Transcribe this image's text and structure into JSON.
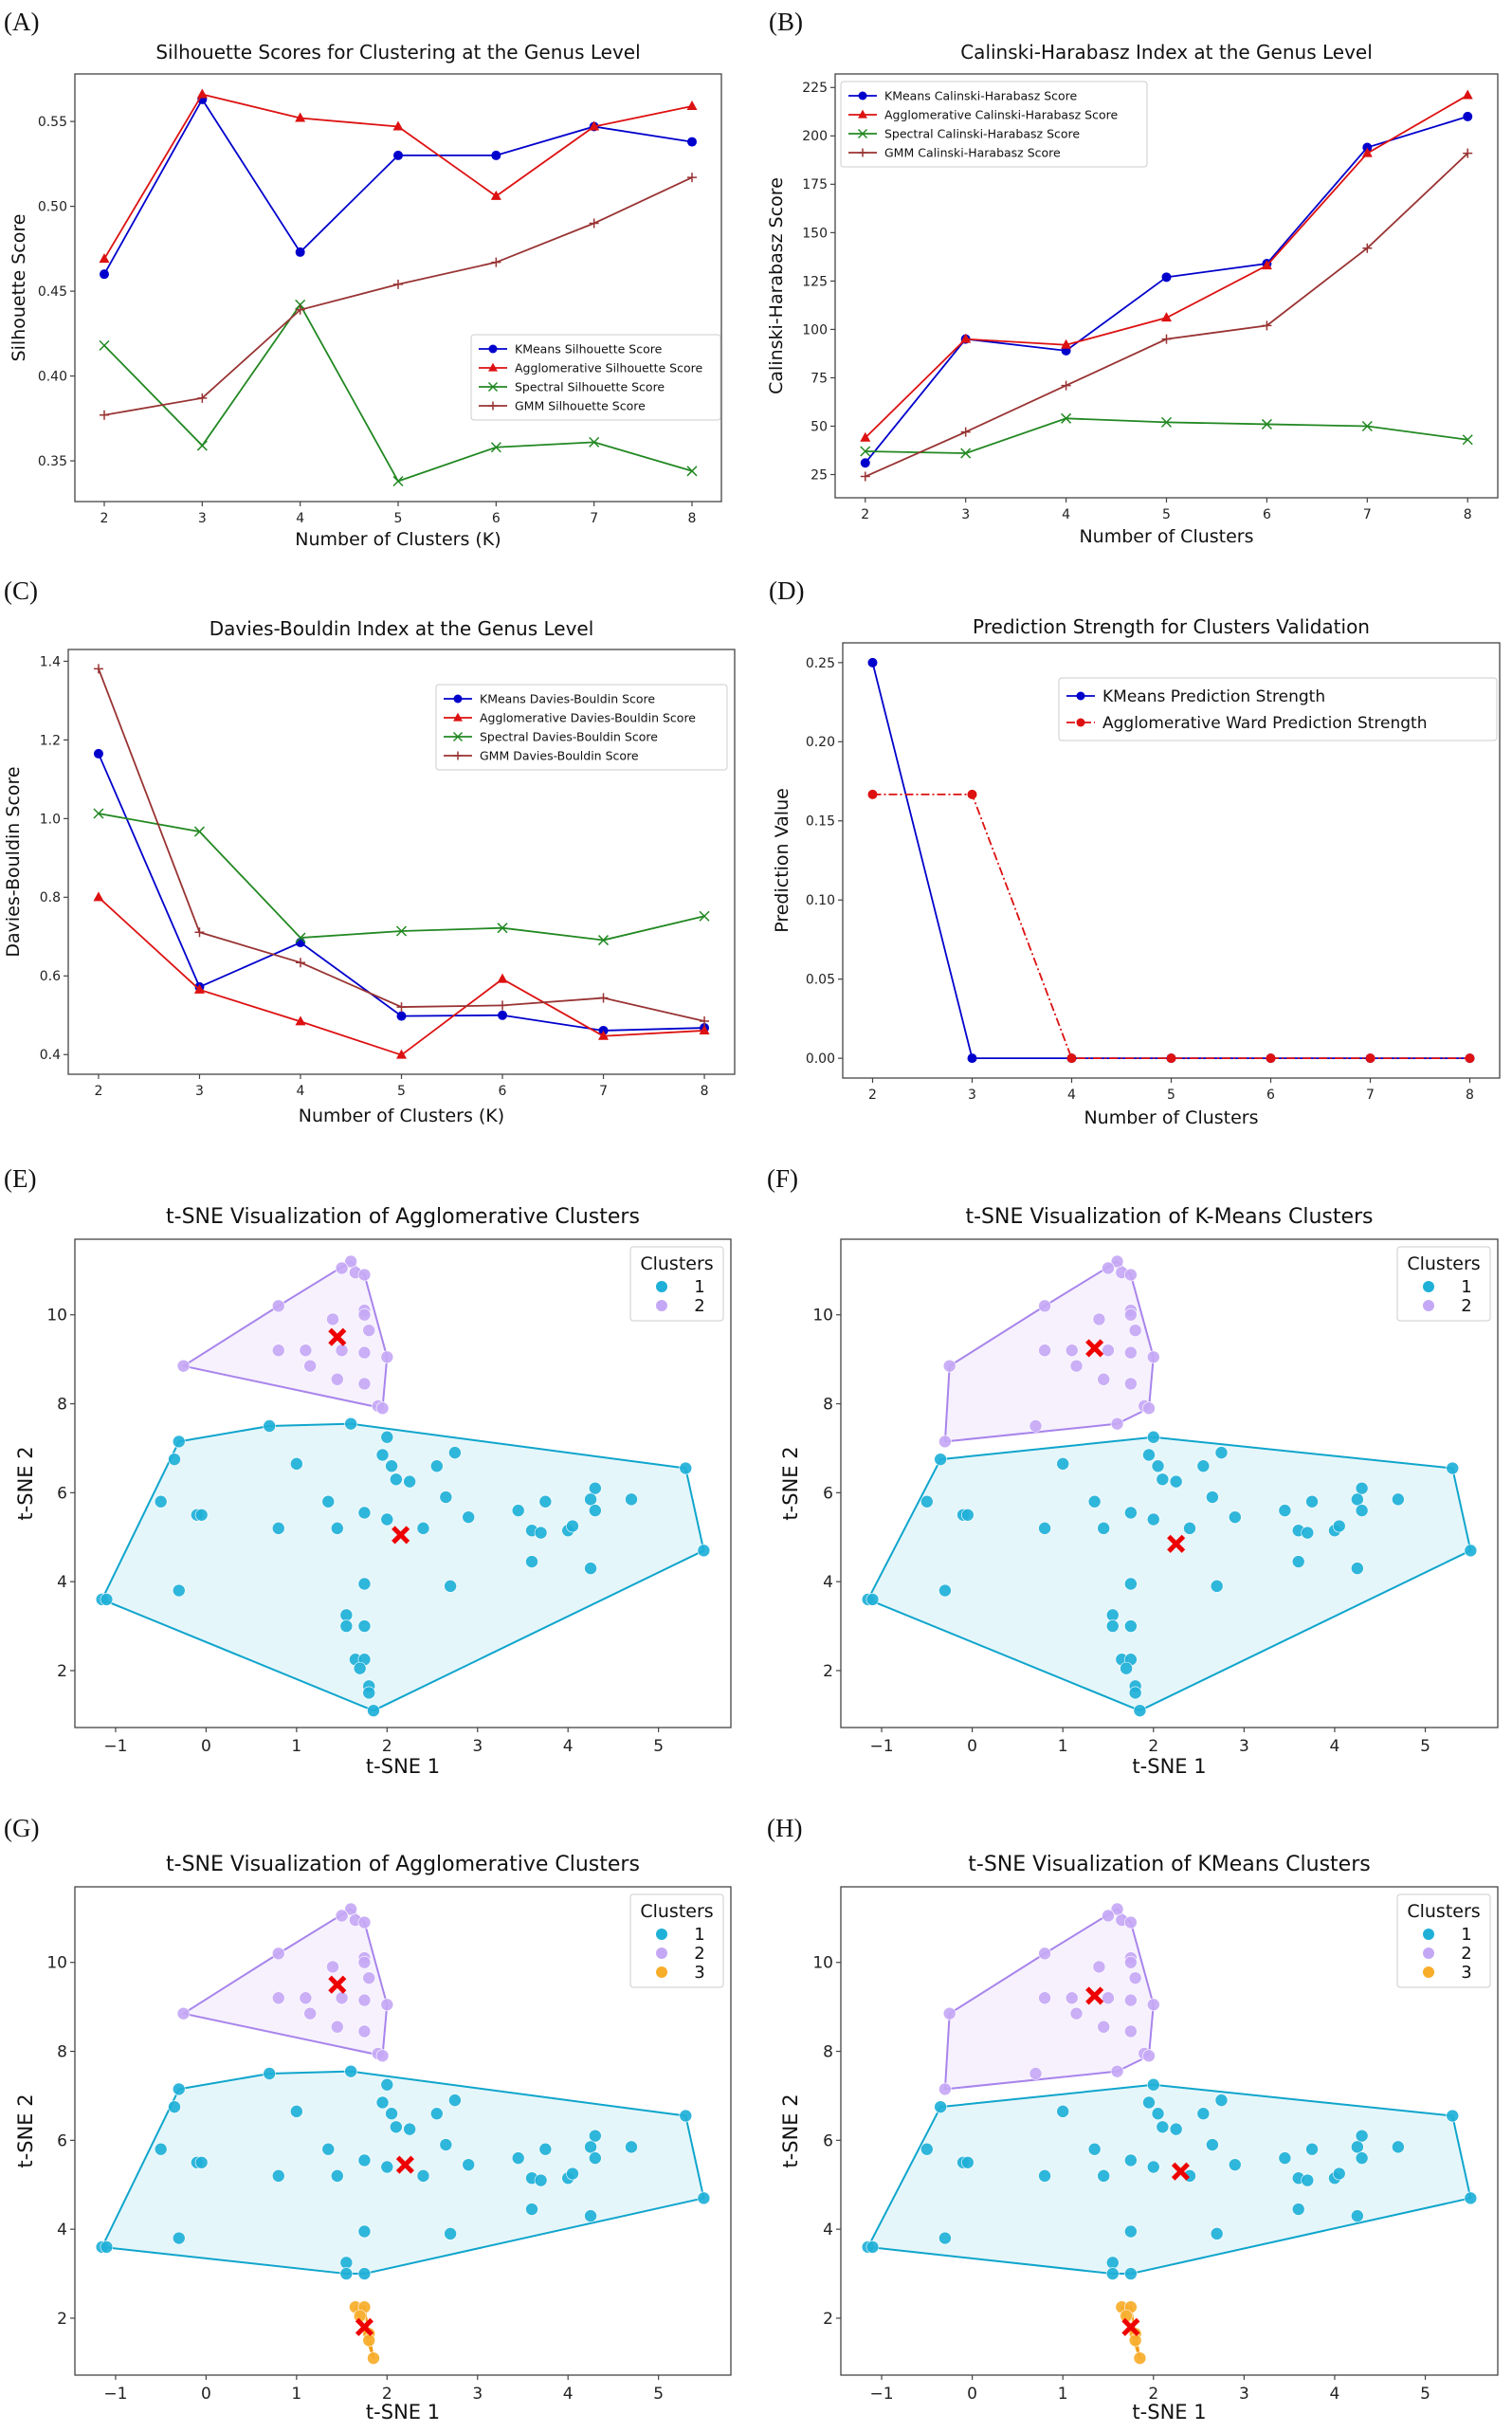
{
  "figure": {
    "panels": [
      "(A)",
      "(B)",
      "(C)",
      "(D)",
      "(E)",
      "(F)",
      "(G)",
      "(H)"
    ]
  },
  "colors": {
    "kmeans": "#0000cc",
    "agglomerative": "#dd1111",
    "spectral": "#228822",
    "gmm": "#993333",
    "cluster1": "#1fb0d8",
    "cluster2": "#c5a8f5",
    "cluster3": "#f7ad2a",
    "cluster1_hull": "#0fa5cc",
    "cluster2_hull": "#a884ec",
    "cluster3_hull": "#f39c12",
    "centroid": "#ee0000"
  },
  "chart_data": [
    {
      "id": "A",
      "type": "line",
      "title": "Silhouette Scores for Clustering at the Genus Level",
      "xlabel": "Number of Clusters (K)",
      "ylabel": "Silhouette Score",
      "x": [
        2,
        3,
        4,
        5,
        6,
        7,
        8
      ],
      "xticks": [
        "2",
        "3",
        "4",
        "5",
        "6",
        "7",
        "8"
      ],
      "yticks": [
        "0.35",
        "0.40",
        "0.45",
        "0.50",
        "0.55"
      ],
      "ytick_values": [
        0.35,
        0.4,
        0.45,
        0.5,
        0.55
      ],
      "ylim": [
        0.326,
        0.578
      ],
      "xlim": [
        1.7,
        8.3
      ],
      "grid": false,
      "legend_position": "center-right",
      "series": [
        {
          "name": "KMeans Silhouette Score",
          "color_key": "kmeans",
          "marker": "circle",
          "values": [
            0.46,
            0.563,
            0.473,
            0.53,
            0.53,
            0.547,
            0.538
          ]
        },
        {
          "name": "Agglomerative Silhouette Score",
          "color_key": "agglomerative",
          "marker": "triangle",
          "values": [
            0.469,
            0.566,
            0.552,
            0.547,
            0.506,
            0.547,
            0.559
          ]
        },
        {
          "name": "Spectral Silhouette Score",
          "color_key": "spectral",
          "marker": "x",
          "values": [
            0.418,
            0.359,
            0.442,
            0.338,
            0.358,
            0.361,
            0.344
          ]
        },
        {
          "name": "GMM Silhouette Score",
          "color_key": "gmm",
          "marker": "plus",
          "values": [
            0.377,
            0.387,
            0.439,
            0.454,
            0.467,
            0.49,
            0.517
          ]
        }
      ]
    },
    {
      "id": "B",
      "type": "line",
      "title": "Calinski-Harabasz Index at the Genus Level",
      "xlabel": "Number of Clusters",
      "ylabel": "Calinski-Harabasz Score",
      "x": [
        2,
        3,
        4,
        5,
        6,
        7,
        8
      ],
      "xticks": [
        "2",
        "3",
        "4",
        "5",
        "6",
        "7",
        "8"
      ],
      "yticks": [
        "25",
        "50",
        "75",
        "100",
        "125",
        "150",
        "175",
        "200",
        "225"
      ],
      "ytick_values": [
        25,
        50,
        75,
        100,
        125,
        150,
        175,
        200,
        225
      ],
      "ylim": [
        13,
        232
      ],
      "xlim": [
        1.7,
        8.3
      ],
      "grid": false,
      "legend_position": "top-left",
      "series": [
        {
          "name": "KMeans Calinski-Harabasz Score",
          "color_key": "kmeans",
          "marker": "circle",
          "values": [
            31,
            95,
            89,
            127,
            134,
            194,
            210
          ]
        },
        {
          "name": "Agglomerative Calinski-Harabasz Score",
          "color_key": "agglomerative",
          "marker": "triangle",
          "values": [
            44,
            95,
            92,
            106,
            133,
            191,
            221
          ]
        },
        {
          "name": "Spectral Calinski-Harabasz Score",
          "color_key": "spectral",
          "marker": "x",
          "values": [
            37,
            36,
            54,
            52,
            51,
            50,
            43
          ]
        },
        {
          "name": "GMM Calinski-Harabasz Score",
          "color_key": "gmm",
          "marker": "plus",
          "values": [
            24,
            47,
            71,
            95,
            102,
            142,
            191
          ]
        }
      ]
    },
    {
      "id": "C",
      "type": "line",
      "title": "Davies-Bouldin Index at the Genus Level",
      "xlabel": "Number of Clusters (K)",
      "ylabel": "Davies-Bouldin Score",
      "x": [
        2,
        3,
        4,
        5,
        6,
        7,
        8
      ],
      "xticks": [
        "2",
        "3",
        "4",
        "5",
        "6",
        "7",
        "8"
      ],
      "yticks": [
        "0.4",
        "0.6",
        "0.8",
        "1.0",
        "1.2",
        "1.4"
      ],
      "ytick_values": [
        0.4,
        0.6,
        0.8,
        1.0,
        1.2,
        1.4
      ],
      "ylim": [
        0.35,
        1.43
      ],
      "xlim": [
        1.7,
        8.3
      ],
      "grid": false,
      "legend_position": "top-right",
      "series": [
        {
          "name": "KMeans Davies-Bouldin Score",
          "color_key": "kmeans",
          "marker": "circle",
          "values": [
            1.165,
            0.572,
            0.685,
            0.498,
            0.5,
            0.461,
            0.468
          ]
        },
        {
          "name": "Agglomerative Davies-Bouldin Score",
          "color_key": "agglomerative",
          "marker": "triangle",
          "values": [
            0.8,
            0.565,
            0.484,
            0.399,
            0.592,
            0.447,
            0.461
          ]
        },
        {
          "name": "Spectral Davies-Bouldin Score",
          "color_key": "spectral",
          "marker": "x",
          "values": [
            1.013,
            0.967,
            0.697,
            0.714,
            0.722,
            0.691,
            0.752
          ]
        },
        {
          "name": "GMM Davies-Bouldin Score",
          "color_key": "gmm",
          "marker": "plus",
          "values": [
            1.381,
            0.711,
            0.634,
            0.521,
            0.525,
            0.544,
            0.485
          ]
        }
      ]
    },
    {
      "id": "D",
      "type": "line",
      "title": "Prediction Strength for Clusters Validation",
      "xlabel": "Number of Clusters",
      "ylabel": "Prediction Value",
      "x": [
        2,
        3,
        4,
        5,
        6,
        7,
        8
      ],
      "xticks": [
        "2",
        "3",
        "4",
        "5",
        "6",
        "7",
        "8"
      ],
      "yticks": [
        "0.00",
        "0.05",
        "0.10",
        "0.15",
        "0.20",
        "0.25"
      ],
      "ytick_values": [
        0,
        0.05,
        0.1,
        0.15,
        0.2,
        0.25
      ],
      "ylim": [
        -0.0125,
        0.2625
      ],
      "xlim": [
        1.7,
        8.3
      ],
      "grid": false,
      "legend_position": "top-right",
      "series": [
        {
          "name": "KMeans Prediction Strength",
          "color_key": "kmeans",
          "marker": "circle",
          "linestyle": "solid",
          "values": [
            0.25,
            0.0,
            0.0,
            0.0,
            0.0,
            0.0,
            0.0
          ]
        },
        {
          "name": "Agglomerative Ward Prediction Strength",
          "color_key": "agglomerative",
          "marker": "circle",
          "linestyle": "dashdot",
          "values": [
            0.1667,
            0.1667,
            0.0,
            0.0,
            0.0,
            0.0,
            0.0
          ]
        }
      ]
    },
    {
      "id": "E",
      "type": "scatter",
      "title": "t-SNE Visualization of Agglomerative Clusters",
      "xlabel": "t-SNE 1",
      "ylabel": "t-SNE 2",
      "xticks": [
        "−1",
        "0",
        "1",
        "2",
        "3",
        "4",
        "5"
      ],
      "xtick_values": [
        -1,
        0,
        1,
        2,
        3,
        4,
        5
      ],
      "yticks": [
        "2",
        "4",
        "6",
        "8",
        "10"
      ],
      "ytick_values": [
        2,
        4,
        6,
        8,
        10
      ],
      "xlim": [
        -1.45,
        5.8
      ],
      "ylim": [
        0.72,
        11.7
      ],
      "legend_title": "Clusters",
      "legend_position": "top-right",
      "clusters": [
        {
          "label": "1",
          "color_key": "cluster1",
          "centroid": [
            2.15,
            5.05
          ],
          "group": [
            "c1",
            "c3",
            "k2"
          ]
        },
        {
          "label": "2",
          "color_key": "cluster2",
          "centroid": [
            1.45,
            9.5
          ],
          "group": [
            "c2"
          ]
        }
      ]
    },
    {
      "id": "F",
      "type": "scatter",
      "title": "t-SNE Visualization of K-Means Clusters",
      "xlabel": "t-SNE 1",
      "ylabel": "t-SNE 2",
      "xticks": [
        "−1",
        "0",
        "1",
        "2",
        "3",
        "4",
        "5"
      ],
      "xtick_values": [
        -1,
        0,
        1,
        2,
        3,
        4,
        5
      ],
      "yticks": [
        "2",
        "4",
        "6",
        "8",
        "10"
      ],
      "ytick_values": [
        2,
        4,
        6,
        8,
        10
      ],
      "xlim": [
        -1.45,
        5.8
      ],
      "ylim": [
        0.72,
        11.7
      ],
      "legend_title": "Clusters",
      "legend_position": "top-right",
      "clusters": [
        {
          "label": "1",
          "color_key": "cluster1",
          "centroid": [
            2.25,
            4.85
          ],
          "group": [
            "c1",
            "c3"
          ]
        },
        {
          "label": "2",
          "color_key": "cluster2",
          "centroid": [
            1.35,
            9.25
          ],
          "group": [
            "c2",
            "k2"
          ]
        }
      ]
    },
    {
      "id": "G",
      "type": "scatter",
      "title": "t-SNE Visualization of Agglomerative Clusters",
      "xlabel": "t-SNE 1",
      "ylabel": "t-SNE 2",
      "xticks": [
        "−1",
        "0",
        "1",
        "2",
        "3",
        "4",
        "5"
      ],
      "xtick_values": [
        -1,
        0,
        1,
        2,
        3,
        4,
        5
      ],
      "yticks": [
        "2",
        "4",
        "6",
        "8",
        "10"
      ],
      "ytick_values": [
        2,
        4,
        6,
        8,
        10
      ],
      "xlim": [
        -1.45,
        5.8
      ],
      "ylim": [
        0.72,
        11.7
      ],
      "legend_title": "Clusters",
      "legend_position": "top-right",
      "clusters": [
        {
          "label": "1",
          "color_key": "cluster1",
          "centroid": [
            2.2,
            5.45
          ],
          "group": [
            "c1",
            "k2"
          ]
        },
        {
          "label": "2",
          "color_key": "cluster2",
          "centroid": [
            1.45,
            9.5
          ],
          "group": [
            "c2"
          ]
        },
        {
          "label": "3",
          "color_key": "cluster3",
          "centroid": [
            1.75,
            1.8
          ],
          "group": [
            "c3"
          ]
        }
      ]
    },
    {
      "id": "H",
      "type": "scatter",
      "title": "t-SNE Visualization of KMeans Clusters",
      "xlabel": "t-SNE 1",
      "ylabel": "t-SNE 2",
      "xticks": [
        "−1",
        "0",
        "1",
        "2",
        "3",
        "4",
        "5"
      ],
      "xtick_values": [
        -1,
        0,
        1,
        2,
        3,
        4,
        5
      ],
      "yticks": [
        "2",
        "4",
        "6",
        "8",
        "10"
      ],
      "ytick_values": [
        2,
        4,
        6,
        8,
        10
      ],
      "xlim": [
        -1.45,
        5.8
      ],
      "ylim": [
        0.72,
        11.7
      ],
      "legend_title": "Clusters",
      "legend_position": "top-right",
      "clusters": [
        {
          "label": "1",
          "color_key": "cluster1",
          "centroid": [
            2.3,
            5.3
          ],
          "group": [
            "c1"
          ]
        },
        {
          "label": "2",
          "color_key": "cluster2",
          "centroid": [
            1.35,
            9.25
          ],
          "group": [
            "c2",
            "k2"
          ]
        },
        {
          "label": "3",
          "color_key": "cluster3",
          "centroid": [
            1.75,
            1.8
          ],
          "group": [
            "c3"
          ]
        }
      ]
    }
  ],
  "tsne_points": {
    "c1": [
      [
        -0.35,
        6.75
      ],
      [
        2.0,
        7.25
      ],
      [
        1.95,
        6.85
      ],
      [
        2.75,
        6.9
      ],
      [
        1.0,
        6.65
      ],
      [
        2.05,
        6.6
      ],
      [
        2.55,
        6.6
      ],
      [
        2.1,
        6.3
      ],
      [
        2.25,
        6.25
      ],
      [
        5.3,
        6.55
      ],
      [
        -0.5,
        5.8
      ],
      [
        -0.1,
        5.5
      ],
      [
        -0.05,
        5.5
      ],
      [
        1.35,
        5.8
      ],
      [
        2.65,
        5.9
      ],
      [
        4.3,
        6.1
      ],
      [
        4.25,
        5.85
      ],
      [
        4.7,
        5.85
      ],
      [
        3.75,
        5.8
      ],
      [
        3.45,
        5.6
      ],
      [
        4.3,
        5.6
      ],
      [
        1.75,
        5.55
      ],
      [
        2.0,
        5.4
      ],
      [
        2.9,
        5.45
      ],
      [
        0.8,
        5.2
      ],
      [
        1.45,
        5.2
      ],
      [
        2.4,
        5.2
      ],
      [
        3.6,
        5.15
      ],
      [
        3.7,
        5.1
      ],
      [
        4.0,
        5.15
      ],
      [
        4.05,
        5.25
      ],
      [
        5.5,
        4.7
      ],
      [
        3.6,
        4.45
      ],
      [
        4.25,
        4.3
      ],
      [
        -0.3,
        3.8
      ],
      [
        1.75,
        3.95
      ],
      [
        2.7,
        3.9
      ],
      [
        -1.15,
        3.6
      ],
      [
        -1.1,
        3.6
      ],
      [
        1.55,
        3.25
      ],
      [
        1.55,
        3.0
      ],
      [
        1.75,
        3.0
      ]
    ],
    "k2": [
      [
        0.7,
        7.5
      ],
      [
        1.6,
        7.55
      ],
      [
        -0.3,
        7.15
      ]
    ],
    "c2": [
      [
        1.6,
        11.2
      ],
      [
        1.5,
        11.05
      ],
      [
        1.65,
        10.95
      ],
      [
        1.75,
        10.9
      ],
      [
        0.8,
        10.2
      ],
      [
        1.75,
        10.1
      ],
      [
        1.75,
        10.0
      ],
      [
        1.4,
        9.9
      ],
      [
        1.8,
        9.65
      ],
      [
        0.8,
        9.2
      ],
      [
        1.1,
        9.2
      ],
      [
        1.5,
        9.2
      ],
      [
        1.75,
        9.15
      ],
      [
        2.0,
        9.05
      ],
      [
        -0.25,
        8.85
      ],
      [
        1.15,
        8.85
      ],
      [
        1.45,
        8.55
      ],
      [
        1.75,
        8.45
      ],
      [
        1.9,
        7.95
      ],
      [
        1.95,
        7.9
      ]
    ],
    "c3": [
      [
        1.65,
        2.25
      ],
      [
        1.75,
        2.25
      ],
      [
        1.7,
        2.05
      ],
      [
        1.8,
        1.65
      ],
      [
        1.8,
        1.5
      ],
      [
        1.85,
        1.1
      ]
    ]
  }
}
